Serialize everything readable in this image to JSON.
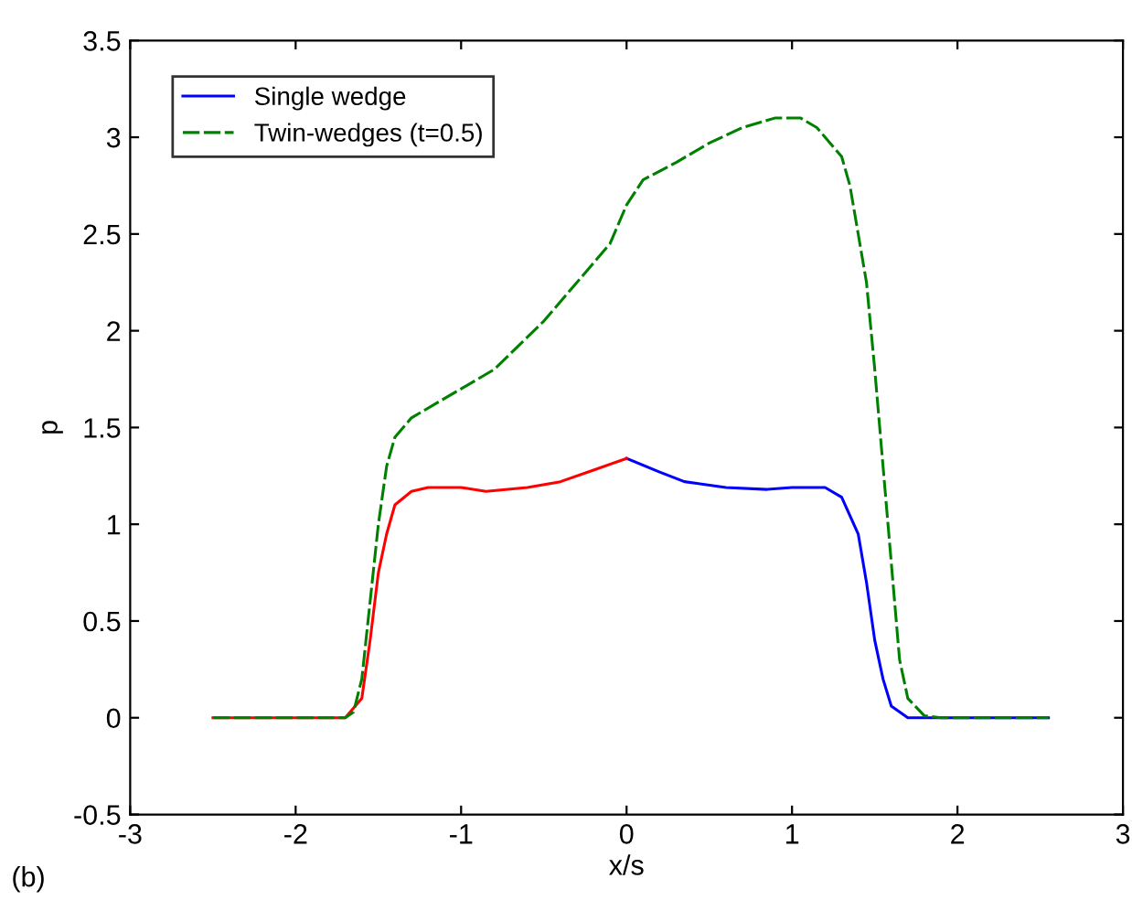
{
  "chart_data": {
    "type": "line",
    "xlabel": "x/s",
    "ylabel": "p",
    "xlim": [
      -3,
      3
    ],
    "ylim": [
      -0.5,
      3.5
    ],
    "xticks": [
      -3,
      -2,
      -1,
      0,
      1,
      2,
      3
    ],
    "yticks": [
      -0.5,
      0,
      0.5,
      1,
      1.5,
      2,
      2.5,
      3,
      3.5
    ],
    "grid": false,
    "legend": "top left",
    "annotations": [
      "(b)"
    ],
    "series": [
      {
        "name": "Single wedge",
        "color": "#0000ff",
        "line_style": "solid",
        "x": [
          0,
          0.2,
          0.35,
          0.6,
          0.85,
          1.0,
          1.2,
          1.3,
          1.4,
          1.45,
          1.5,
          1.55,
          1.6,
          1.7,
          2.55
        ],
        "values": [
          1.34,
          1.27,
          1.22,
          1.19,
          1.18,
          1.19,
          1.19,
          1.14,
          0.95,
          0.7,
          0.4,
          0.2,
          0.06,
          0,
          0
        ]
      },
      {
        "color": "#ff0000",
        "line_style": "solid",
        "x": [
          -2.5,
          -1.7,
          -1.6,
          -1.55,
          -1.5,
          -1.45,
          -1.4,
          -1.3,
          -1.2,
          -1.0,
          -0.85,
          -0.6,
          -0.4,
          -0.2,
          0
        ],
        "values": [
          0,
          0,
          0.1,
          0.4,
          0.75,
          0.95,
          1.1,
          1.17,
          1.19,
          1.19,
          1.17,
          1.19,
          1.22,
          1.28,
          1.34
        ]
      },
      {
        "name": "Twin-wedges (t=0.5)",
        "color": "#008000",
        "line_style": "dashed",
        "x": [
          -2.5,
          -1.7,
          -1.65,
          -1.6,
          -1.55,
          -1.5,
          -1.45,
          -1.4,
          -1.3,
          -1.1,
          -0.8,
          -0.5,
          -0.3,
          -0.1,
          0,
          0.1,
          0.3,
          0.5,
          0.7,
          0.9,
          1.05,
          1.15,
          1.3,
          1.35,
          1.45,
          1.5,
          1.55,
          1.6,
          1.65,
          1.7,
          1.8,
          1.9,
          2.55
        ],
        "values": [
          0,
          0,
          0.03,
          0.2,
          0.6,
          1.0,
          1.3,
          1.45,
          1.55,
          1.65,
          1.8,
          2.05,
          2.25,
          2.45,
          2.65,
          2.78,
          2.87,
          2.97,
          3.05,
          3.1,
          3.1,
          3.05,
          2.9,
          2.75,
          2.25,
          1.8,
          1.3,
          0.8,
          0.3,
          0.1,
          0.01,
          0,
          0
        ]
      }
    ]
  }
}
